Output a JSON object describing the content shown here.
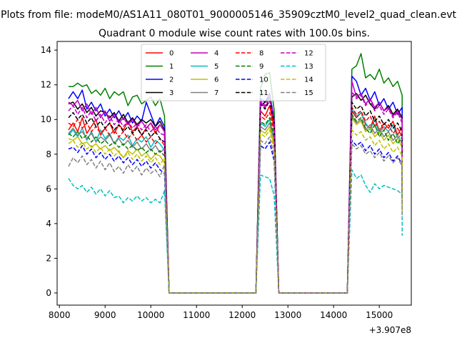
{
  "figure": {
    "suptitle": "Plots from file: modeM0/AS1A11_080T01_9000005146_35909cztM0_level2_quad_clean.evt",
    "title": "Quadrant 0 module wise count rates with 100.0s bins.",
    "offset_label": "+3.907e8"
  },
  "chart_data": {
    "type": "line",
    "title": "Quadrant 0 module wise count rates with 100.0s bins.",
    "xlabel": "",
    "ylabel": "",
    "x_offset": 390700000,
    "xlim": [
      7950,
      15700
    ],
    "ylim": [
      -0.7,
      14.5
    ],
    "xticks": [
      8000,
      9000,
      10000,
      11000,
      12000,
      13000,
      14000,
      15000
    ],
    "yticks": [
      0,
      2,
      4,
      6,
      8,
      10,
      12,
      14
    ],
    "grid": false,
    "legend_position": "top-center",
    "legend_columns": 4,
    "x_segments": [
      [
        8200,
        10300
      ],
      [
        12400,
        12700
      ],
      [
        14400,
        15500
      ]
    ],
    "zero_segments": [
      [
        10400,
        12300
      ],
      [
        12800,
        14300
      ]
    ],
    "series": [
      {
        "name": "0",
        "color": "#ff0000",
        "dash": "solid",
        "seg1": [
          9.4,
          9.8,
          9.3,
          10.1,
          9.2,
          9.6,
          10,
          9.1,
          9.5,
          9.8,
          9.2,
          9.7,
          9.4,
          9.9,
          9.3,
          9.6,
          9.1,
          9.5,
          9.8,
          9.2,
          9.7,
          9.3
        ],
        "seg2": [
          10.5,
          10.2,
          10.8,
          9.5
        ],
        "seg3": [
          10.5,
          10.1,
          10.4,
          9.7,
          9.5,
          10.2,
          9.3,
          9.8,
          9.5,
          9.9,
          9.1,
          9.6
        ],
        "end": 5.8
      },
      {
        "name": "1",
        "color": "#008000",
        "dash": "solid",
        "seg1": [
          11.9,
          11.9,
          12.1,
          11.9,
          12,
          11.5,
          11.7,
          11.4,
          11.8,
          11.2,
          11.6,
          11.4,
          11.6,
          10.8,
          11.3,
          11.4,
          10.9,
          11.1,
          11.3,
          10.8,
          11.2,
          10.2
        ],
        "seg2": [
          11.8,
          12.6,
          12.7,
          10.5
        ],
        "seg3": [
          12.9,
          13.1,
          13.8,
          12.4,
          12.6,
          12.3,
          12.9,
          12.1,
          12.4,
          11.9,
          12.2,
          11.4
        ],
        "end": 5.9
      },
      {
        "name": "2",
        "color": "#0000ff",
        "dash": "solid",
        "seg1": [
          11.2,
          11.6,
          11.2,
          11.7,
          10.6,
          11,
          10.5,
          10.9,
          10.2,
          10.6,
          10.1,
          10.5,
          10,
          10.4,
          9.8,
          10.2,
          9.9,
          11,
          10.3,
          9.6,
          10.1,
          9.6
        ],
        "seg2": [
          11.2,
          11,
          11.5,
          10
        ],
        "seg3": [
          12.5,
          12.2,
          11.4,
          11.8,
          11.1,
          11.6,
          10.8,
          11.2,
          10.6,
          11,
          10.3,
          10.7
        ],
        "end": 5.6
      },
      {
        "name": "3",
        "color": "#000000",
        "dash": "solid",
        "seg1": [
          10.9,
          11,
          10.6,
          10.9,
          10.4,
          10.7,
          10.2,
          10.5,
          10.4,
          10.1,
          10.4,
          9.9,
          10.3,
          9.8,
          10.1,
          9.7,
          10,
          9.8,
          10,
          9.6,
          9.9,
          9.4
        ],
        "seg2": [
          10.8,
          11,
          11.3,
          9.8
        ],
        "seg3": [
          11.3,
          11.5,
          11.1,
          11.4,
          10.9,
          10.6,
          11,
          10.5,
          10.8,
          10.3,
          10.6,
          10.1
        ],
        "end": 5.5
      },
      {
        "name": "4",
        "color": "#bf00bf",
        "dash": "solid",
        "seg1": [
          11,
          10.8,
          11.1,
          10.5,
          10.9,
          10.3,
          10.7,
          10.1,
          10.5,
          9.9,
          10.3,
          9.8,
          10.1,
          9.7,
          10,
          9.6,
          9.9,
          9.5,
          9.8,
          9.4,
          9.7,
          9.3
        ],
        "seg2": [
          11,
          10.7,
          11.2,
          9.8
        ],
        "seg3": [
          12.2,
          11.3,
          11.5,
          10.9,
          11.2,
          10.7,
          11,
          10.5,
          10.7,
          10.2,
          10.5,
          10
        ],
        "end": 5.4
      },
      {
        "name": "5",
        "color": "#00bfbf",
        "dash": "solid",
        "seg1": [
          9.1,
          9.4,
          9,
          9.5,
          8.8,
          9.3,
          8.7,
          9.4,
          8.9,
          9.2,
          8.6,
          9,
          8.8,
          9.1,
          8.5,
          8.9,
          8.7,
          9,
          8.4,
          8.8,
          8.6,
          8.2
        ],
        "seg2": [
          9.8,
          9.6,
          10,
          8.9
        ],
        "seg3": [
          10.6,
          10.2,
          10.4,
          9.8,
          9.4,
          10,
          9.2,
          9.6,
          9.3,
          9.7,
          8.9,
          9.2
        ],
        "end": 5.2
      },
      {
        "name": "6",
        "color": "#bfbf00",
        "dash": "solid",
        "seg1": [
          8.9,
          8.8,
          9,
          8.6,
          8.7,
          8.4,
          8.6,
          8.3,
          8.5,
          8.2,
          8.4,
          8.1,
          7.8,
          8.2,
          8,
          8.3,
          7.9,
          8.1,
          7.7,
          8,
          7.9,
          7.5
        ],
        "seg2": [
          9.4,
          9.2,
          9.6,
          8.5
        ],
        "seg3": [
          10.1,
          9.7,
          9.9,
          9.3,
          9.5,
          9,
          9.3,
          8.8,
          9.1,
          8.6,
          8.9,
          8.4
        ],
        "end": 5
      },
      {
        "name": "7",
        "color": "#808080",
        "dash": "solid",
        "seg1": [
          9.2,
          9.5,
          9.1,
          9.3,
          8.9,
          9.2,
          8.7,
          9,
          8.8,
          9.1,
          8.6,
          8.9,
          8.5,
          8.8,
          8.4,
          8.7,
          8.3,
          8.6,
          8.2,
          8.5,
          8.1,
          8.3
        ],
        "seg2": [
          9.6,
          9.4,
          9.8,
          8.8
        ],
        "seg3": [
          10.2,
          9.8,
          10,
          9.4,
          9.7,
          9.2,
          9.5,
          9,
          9.3,
          8.8,
          9.1,
          8.6
        ],
        "end": 5.1
      },
      {
        "name": "8",
        "color": "#ff0000",
        "dash": "dashed",
        "seg1": [
          9.8,
          9.6,
          10,
          9.5,
          9.8,
          9.3,
          9.6,
          9.2,
          9.5,
          9.1,
          9.4,
          9,
          9.3,
          8.9,
          9.2,
          8.8,
          9.1,
          8.7,
          9,
          8.6,
          8.9,
          8.5
        ],
        "seg2": [
          10.2,
          10,
          10.4,
          9.3
        ],
        "seg3": [
          10.7,
          10.3,
          10.5,
          9.9,
          10.2,
          9.6,
          9.9,
          9.4,
          9.7,
          9.2,
          9.5,
          9
        ],
        "end": 5.3
      },
      {
        "name": "9",
        "color": "#008000",
        "dash": "dashed",
        "seg1": [
          9.2,
          9,
          9.3,
          8.9,
          9.1,
          8.7,
          9,
          8.6,
          8.8,
          8.5,
          8.7,
          8.4,
          8.6,
          8.3,
          8.5,
          8.2,
          8.4,
          8.1,
          8.3,
          8,
          8.2,
          7.9
        ],
        "seg2": [
          9.9,
          9.7,
          10.1,
          9
        ],
        "seg3": [
          10.3,
          9.9,
          10.1,
          9.5,
          9.2,
          9.7,
          9,
          9.4,
          8.8,
          9.2,
          8.6,
          9
        ],
        "end": 5.1
      },
      {
        "name": "10",
        "color": "#0000ff",
        "dash": "dashed",
        "seg1": [
          8.3,
          8.4,
          8.1,
          8.5,
          8,
          8.3,
          7.8,
          8.1,
          7.7,
          8,
          7.6,
          7.9,
          7.5,
          7.8,
          7.4,
          7.7,
          7.3,
          7.6,
          7.2,
          7.5,
          7.1,
          6.9
        ],
        "seg2": [
          8.5,
          8.3,
          8.7,
          7.6
        ],
        "seg3": [
          8.8,
          8.5,
          8.7,
          8.2,
          8.5,
          8,
          8.3,
          7.8,
          8.1,
          7.6,
          7.9,
          7.4
        ],
        "end": 4.8
      },
      {
        "name": "11",
        "color": "#000000",
        "dash": "dashed",
        "seg1": [
          10.1,
          10.4,
          10,
          10.3,
          9.8,
          10.1,
          9.6,
          9.9,
          9.5,
          9.8,
          9.4,
          9.7,
          9.3,
          9.6,
          9.2,
          9.5,
          9.1,
          9.4,
          9,
          9.3,
          8.9,
          8.7
        ],
        "seg2": [
          10.9,
          10.6,
          11.1,
          9.8
        ],
        "seg3": [
          11,
          10.6,
          10.8,
          10.2,
          10.5,
          9.9,
          10.2,
          9.7,
          10,
          9.5,
          9.8,
          9.3
        ],
        "end": 5.5
      },
      {
        "name": "12",
        "color": "#bf00bf",
        "dash": "dashed",
        "seg1": [
          10.5,
          10.8,
          10.3,
          10.7,
          10.1,
          10.5,
          9.9,
          10.3,
          9.8,
          10.2,
          9.7,
          10,
          9.6,
          9.9,
          9.5,
          9.8,
          9.4,
          9.7,
          9.3,
          9.6,
          9.2,
          9.1
        ],
        "seg2": [
          11.1,
          10.8,
          11.3,
          10
        ],
        "seg3": [
          11.6,
          11.2,
          11.4,
          10.8,
          11.1,
          10.5,
          10.8,
          10.3,
          10.6,
          10.1,
          10.4,
          9.8
        ],
        "end": 5.6
      },
      {
        "name": "13",
        "color": "#00bfbf",
        "dash": "dashed",
        "seg1": [
          6.6,
          6.2,
          6.0,
          6.2,
          5.8,
          6.1,
          5.7,
          6.0,
          5.6,
          5.9,
          5.5,
          5.6,
          5.2,
          5.5,
          5.3,
          5.6,
          5.3,
          5.5,
          5.2,
          5.4,
          5.2,
          5.9
        ],
        "seg2": [
          6.8,
          6.7,
          6.6,
          5.6
        ],
        "seg3": [
          7.1,
          6.6,
          6.8,
          6.2,
          5.8,
          6.3,
          6.0,
          6.2,
          6.1,
          6.0,
          5.9,
          5.7
        ],
        "end": 3.3
      },
      {
        "name": "14",
        "color": "#bfbf00",
        "dash": "dashed",
        "seg1": [
          8.6,
          8.8,
          8.4,
          8.7,
          8.3,
          8.5,
          8.1,
          8.4,
          8,
          8.3,
          7.9,
          8.2,
          7.8,
          8.1,
          7.7,
          8,
          7.6,
          7.9,
          7.5,
          7.8,
          7.4,
          7.8
        ],
        "seg2": [
          9.2,
          9,
          9.4,
          8.2
        ],
        "seg3": [
          9.4,
          9.1,
          9.3,
          8.8,
          9,
          8.5,
          8.8,
          8.3,
          8.6,
          8.1,
          8.4,
          7.9
        ],
        "end": 4.5
      },
      {
        "name": "15",
        "color": "#808080",
        "dash": "dashed",
        "seg1": [
          7.3,
          7.8,
          7.5,
          7.9,
          7.4,
          7.7,
          7.2,
          7.6,
          7.1,
          7.5,
          7,
          7.3,
          6.9,
          7.4,
          7,
          7.3,
          6.8,
          7.2,
          6.9,
          7.1,
          6.7,
          7.4
        ],
        "seg2": [
          8.8,
          8.6,
          9,
          7.9
        ],
        "seg3": [
          8.6,
          8.3,
          8.5,
          8,
          8.2,
          7.8,
          8.1,
          7.6,
          7.9,
          7.5,
          7.8,
          7.3
        ],
        "end": 4.4
      }
    ]
  }
}
